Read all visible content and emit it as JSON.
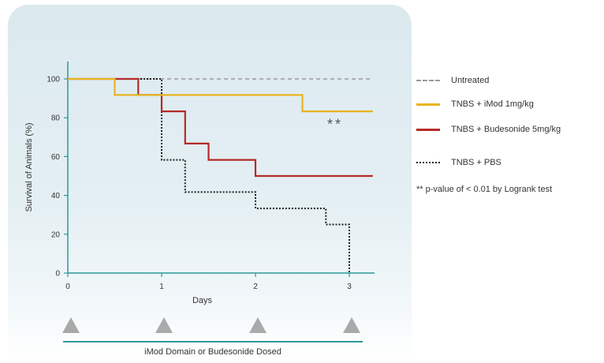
{
  "chart_data": {
    "type": "line",
    "step": true,
    "xlabel": "Days",
    "ylabel": "Survival of Animals (%)",
    "xlim": [
      0,
      3.3
    ],
    "ylim": [
      0,
      110
    ],
    "x_ticks": [
      0,
      1,
      2,
      3
    ],
    "y_ticks": [
      0,
      20,
      40,
      60,
      80,
      100
    ],
    "series": [
      {
        "name": "Untreated",
        "color": "#9a9a9a",
        "style": "dashed",
        "points": [
          [
            0,
            100
          ],
          [
            3.25,
            100
          ]
        ]
      },
      {
        "name": "TNBS + iMod 1mg/kg",
        "color": "#e8b320",
        "style": "solid",
        "points": [
          [
            0,
            100
          ],
          [
            0.5,
            100
          ],
          [
            0.5,
            91.7
          ],
          [
            2.5,
            91.7
          ],
          [
            2.5,
            83.3
          ],
          [
            3.25,
            83.3
          ]
        ]
      },
      {
        "name": "TNBS + Budesonide 5mg/kg",
        "color": "#b52a28",
        "style": "solid",
        "points": [
          [
            0,
            100
          ],
          [
            0.75,
            100
          ],
          [
            0.75,
            91.7
          ],
          [
            1.0,
            91.7
          ],
          [
            1.0,
            83.3
          ],
          [
            1.25,
            83.3
          ],
          [
            1.25,
            66.7
          ],
          [
            1.5,
            66.7
          ],
          [
            1.5,
            58.3
          ],
          [
            2.0,
            58.3
          ],
          [
            2.0,
            50
          ],
          [
            3.25,
            50
          ]
        ]
      },
      {
        "name": "TNBS + PBS",
        "color": "#222222",
        "style": "dotted",
        "points": [
          [
            0,
            100
          ],
          [
            1.0,
            100
          ],
          [
            1.0,
            58.3
          ],
          [
            1.25,
            58.3
          ],
          [
            1.25,
            41.7
          ],
          [
            2.0,
            41.7
          ],
          [
            2.0,
            33.3
          ],
          [
            2.75,
            33.3
          ],
          [
            2.75,
            25
          ],
          [
            3.0,
            25
          ],
          [
            3.0,
            0
          ]
        ]
      }
    ],
    "annotation": {
      "text": "**",
      "x": 2.95,
      "y": 75,
      "color": "#555555"
    },
    "note": "** p-value of < 0.01 by Logrank test",
    "dose_days": [
      0,
      1,
      2,
      3
    ],
    "dose_label": "iMod Domain or Budesonide Dosed",
    "legend_position": "right"
  }
}
